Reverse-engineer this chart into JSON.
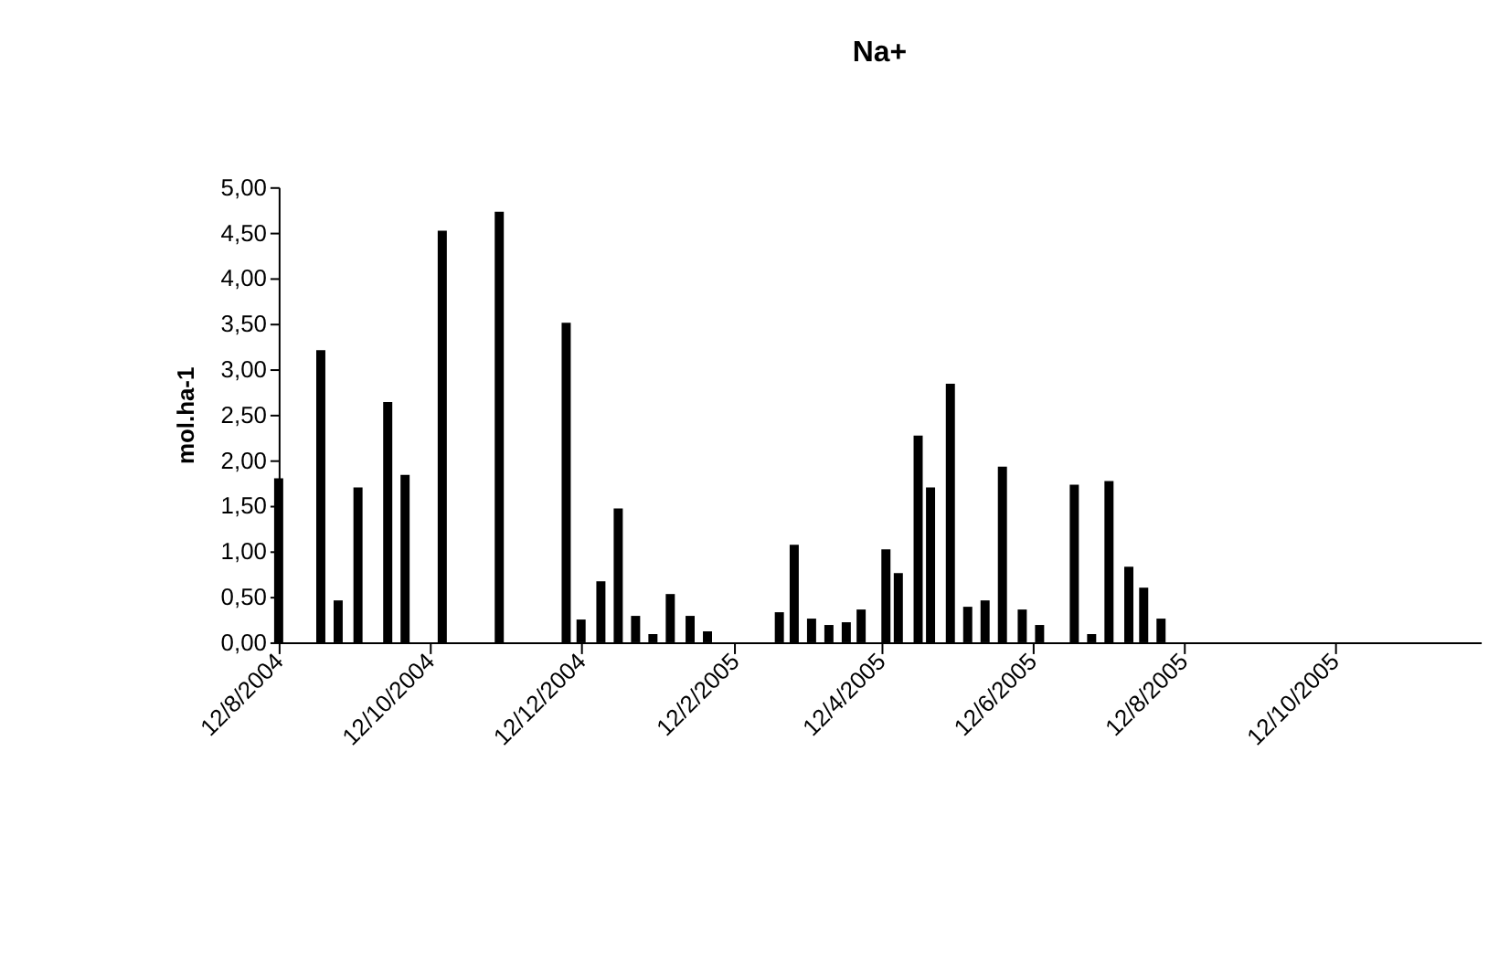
{
  "chart_data": {
    "type": "bar",
    "title": "Na+",
    "ylabel": "mol.ha-1",
    "color": "#000000",
    "grid": false,
    "x": [
      "2004-08-12",
      "2004-08-29",
      "2004-09-05",
      "2004-09-13",
      "2004-09-25",
      "2004-10-02",
      "2004-10-17",
      "2004-11-09",
      "2004-12-06",
      "2004-12-12",
      "2004-12-20",
      "2004-12-27",
      "2005-01-03",
      "2005-01-10",
      "2005-01-17",
      "2005-01-25",
      "2005-02-01",
      "2005-03-02",
      "2005-03-08",
      "2005-03-15",
      "2005-03-22",
      "2005-03-29",
      "2005-04-04",
      "2005-04-14",
      "2005-04-19",
      "2005-04-27",
      "2005-05-02",
      "2005-05-10",
      "2005-05-17",
      "2005-05-24",
      "2005-05-31",
      "2005-06-08",
      "2005-06-15",
      "2005-06-29",
      "2005-07-06",
      "2005-07-13",
      "2005-07-21",
      "2005-07-27",
      "2005-08-03"
    ],
    "values": [
      1.8,
      3.21,
      0.46,
      1.7,
      2.64,
      1.84,
      4.52,
      4.73,
      3.51,
      0.25,
      0.67,
      1.47,
      0.29,
      0.09,
      0.53,
      0.29,
      0.12,
      0.33,
      1.07,
      0.26,
      0.19,
      0.22,
      0.36,
      1.02,
      0.76,
      2.27,
      1.7,
      2.84,
      0.39,
      0.46,
      1.93,
      0.36,
      0.19,
      1.73,
      0.09,
      1.77,
      0.83,
      0.6,
      0.26
    ],
    "xlim": [
      "2004-08-12",
      "2005-12-10"
    ],
    "xticks": [
      {
        "value": "2004-08-12",
        "label": "12/8/2004"
      },
      {
        "value": "2004-10-12",
        "label": "12/10/2004"
      },
      {
        "value": "2004-12-12",
        "label": "12/12/2004"
      },
      {
        "value": "2005-02-12",
        "label": "12/2/2005"
      },
      {
        "value": "2005-04-12",
        "label": "12/4/2005"
      },
      {
        "value": "2005-06-12",
        "label": "12/6/2005"
      },
      {
        "value": "2005-08-12",
        "label": "12/8/2005"
      },
      {
        "value": "2005-10-12",
        "label": "12/10/2005"
      }
    ],
    "ylim": [
      0,
      5
    ],
    "yticks": [
      {
        "value": 0,
        "label": "0,00"
      },
      {
        "value": 0.5,
        "label": "0,50"
      },
      {
        "value": 1,
        "label": "1,00"
      },
      {
        "value": 1.5,
        "label": "1,50"
      },
      {
        "value": 2,
        "label": "2,00"
      },
      {
        "value": 2.5,
        "label": "2,50"
      },
      {
        "value": 3,
        "label": "3,00"
      },
      {
        "value": 3.5,
        "label": "3,50"
      },
      {
        "value": 4,
        "label": "4,00"
      },
      {
        "value": 4.5,
        "label": "4,50"
      },
      {
        "value": 5,
        "label": "5,00"
      }
    ]
  }
}
